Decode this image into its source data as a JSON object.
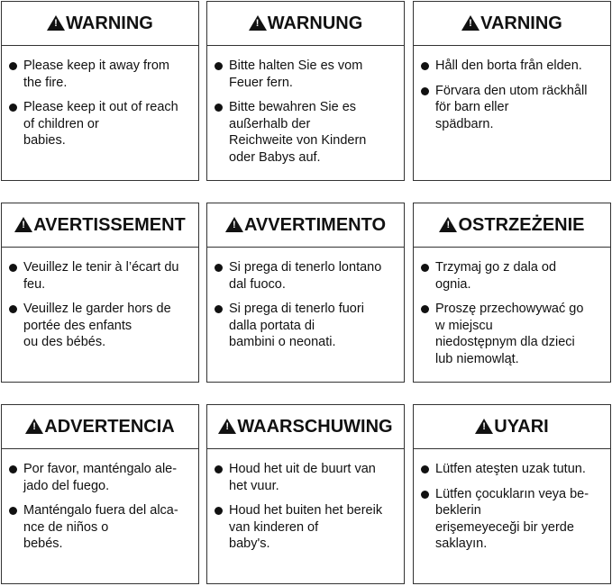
{
  "cards": [
    {
      "title": "WARNING",
      "items": [
        [
          "Please keep it away from",
          "the fire."
        ],
        [
          "Please keep it out of reach",
          "of children or",
          "babies."
        ]
      ]
    },
    {
      "title": "WARNUNG",
      "items": [
        [
          "Bitte halten Sie es vom",
          "Feuer fern."
        ],
        [
          "Bitte bewahren Sie es",
          "außerhalb der",
          "Reichweite von Kindern",
          "oder Babys auf."
        ]
      ]
    },
    {
      "title": "VARNING",
      "items": [
        [
          "Håll den borta från elden."
        ],
        [
          "Förvara den utom räckhåll",
          "för barn eller",
          "spädbarn."
        ]
      ]
    },
    {
      "title": "AVERTISSEMENT",
      "items": [
        [
          "Veuillez le tenir à l’écart du",
          "feu."
        ],
        [
          "Veuillez le garder hors de",
          "portée des enfants",
          "ou des bébés."
        ]
      ]
    },
    {
      "title": "AVVERTIMENTO",
      "items": [
        [
          "Si prega di tenerlo lontano",
          "dal fuoco."
        ],
        [
          "Si prega di tenerlo fuori",
          "dalla portata di",
          "bambini o neonati."
        ]
      ]
    },
    {
      "title": "OSTRZEŻENIE",
      "items": [
        [
          "Trzymaj go z dala od",
          "ognia."
        ],
        [
          "Proszę przechowywać go",
          "w miejscu",
          "niedostępnym dla dzieci",
          "lub niemowląt."
        ]
      ]
    },
    {
      "title": "ADVERTENCIA",
      "items": [
        [
          "Por favor, manténgalo ale-",
          "jado del fuego."
        ],
        [
          "Manténgalo fuera del alca-",
          "nce de niños o",
          "bebés."
        ]
      ]
    },
    {
      "title": "WAARSCHUWING",
      "items": [
        [
          "Houd het uit de buurt van",
          "het vuur."
        ],
        [
          "Houd het buiten het bereik",
          "van kinderen of",
          "baby's."
        ]
      ]
    },
    {
      "title": "UYARI",
      "items": [
        [
          "Lütfen ateşten uzak tutun."
        ],
        [
          "Lütfen çocukların veya be-",
          "beklerin",
          "erişemeyeceği bir yerde",
          "saklayın."
        ]
      ]
    }
  ],
  "icon": "warning-triangle-icon"
}
